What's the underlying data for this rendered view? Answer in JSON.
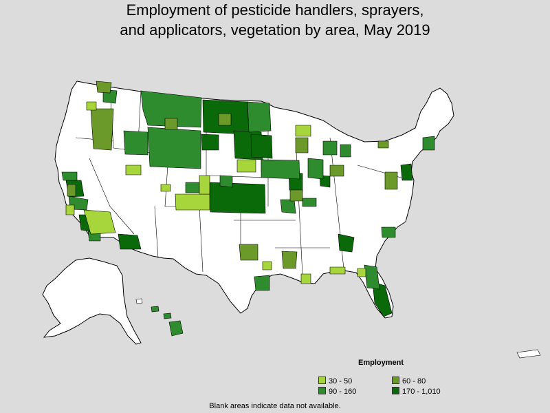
{
  "title": {
    "line1": "Employment of pesticide handlers, sprayers,",
    "line2": "and applicators, vegetation by area, May 2019"
  },
  "legend": {
    "title": "Employment",
    "items": [
      {
        "label": "30 - 50",
        "color": "#a6d63b"
      },
      {
        "label": "60 - 80",
        "color": "#6b9a2a"
      },
      {
        "label": "90 - 160",
        "color": "#2e8b2e"
      },
      {
        "label": "170 - 1,010",
        "color": "#0a6a0a"
      }
    ]
  },
  "footnote": "Blank areas indicate data not available.",
  "colors": {
    "background": "#dcdcdc",
    "no_data": "#ffffff",
    "border": "#000000"
  }
}
